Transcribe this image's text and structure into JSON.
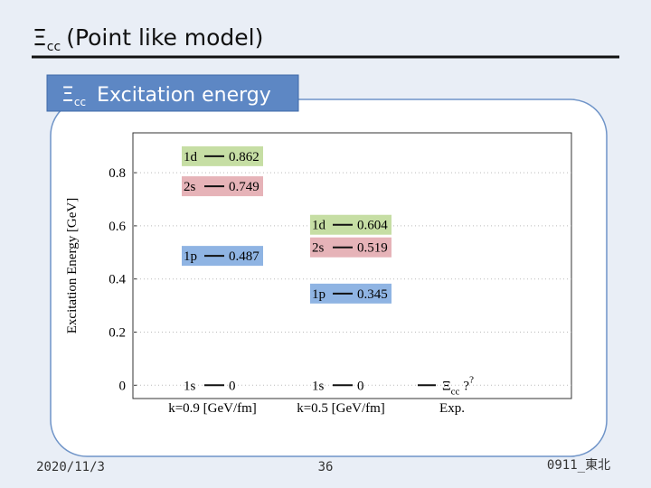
{
  "slide": {
    "title": {
      "symbol": "Ξ",
      "subscript": "cc",
      "text": "(Point like model)"
    },
    "box_label": {
      "symbol": "Ξ",
      "subscript": "cc",
      "text": "Excitation energy"
    },
    "date": "2020/11/3",
    "page": "36",
    "footer": "0911_東北"
  },
  "chart_data": {
    "type": "level",
    "y_label": "Excitation Energy [GeV]",
    "ylim": [
      -0.05,
      0.95
    ],
    "yticks": [
      0,
      0.2,
      0.4,
      0.6,
      0.8
    ],
    "grid": true,
    "state_colors": {
      "1s": null,
      "1p": "#8fb4e3",
      "2s": "#e6b3b8",
      "1d": "#c6dea4"
    },
    "columns": [
      {
        "name": "k=0.9 [GeV/fm]",
        "levels": [
          {
            "state": "1s",
            "value": 0
          },
          {
            "state": "1p",
            "value": 0.487
          },
          {
            "state": "2s",
            "value": 0.749
          },
          {
            "state": "1d",
            "value": 0.862
          }
        ]
      },
      {
        "name": "k=0.5 [GeV/fm]",
        "levels": [
          {
            "state": "1s",
            "value": 0
          },
          {
            "state": "1p",
            "value": 0.345
          },
          {
            "state": "2s",
            "value": 0.519
          },
          {
            "state": "1d",
            "value": 0.604
          }
        ]
      },
      {
        "name": "Exp.",
        "levels": [
          {
            "symbol": "Ξ",
            "subscript": "cc",
            "mark": "?",
            "superscript": "?",
            "value": 0
          }
        ]
      }
    ]
  }
}
